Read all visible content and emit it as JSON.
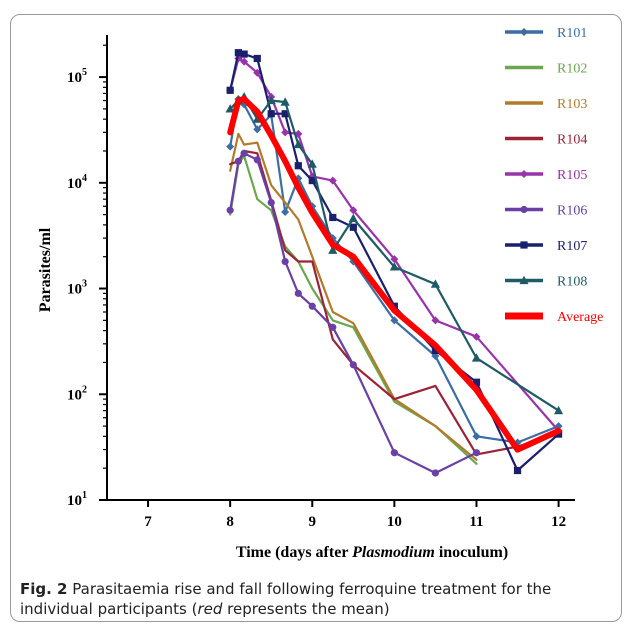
{
  "chart_data": {
    "type": "line",
    "xlabel_parts": [
      "Time (days after ",
      "Plasmodium",
      " inoculum)"
    ],
    "ylabel": "Parasites/ml",
    "x_ticks": [
      7,
      8,
      9,
      10,
      11,
      12
    ],
    "y_ticks": [
      {
        "value": 10,
        "base": "10",
        "exp": "1"
      },
      {
        "value": 100,
        "base": "10",
        "exp": "2"
      },
      {
        "value": 1000,
        "base": "10",
        "exp": "3"
      },
      {
        "value": 10000,
        "base": "10",
        "exp": "4"
      },
      {
        "value": 100000,
        "base": "10",
        "exp": "5"
      }
    ],
    "xlim": [
      6.5,
      12.2
    ],
    "ylim": [
      10,
      250000
    ],
    "yscale": "log",
    "series": [
      {
        "name": "R101",
        "color": "#3a6ea5",
        "marker": "diamond",
        "points": [
          [
            8,
            22000
          ],
          [
            8.1,
            62000
          ],
          [
            8.17,
            55000
          ],
          [
            8.33,
            32000
          ],
          [
            8.5,
            44000
          ],
          [
            8.67,
            5300
          ],
          [
            8.83,
            11000
          ],
          [
            9,
            6000
          ],
          [
            9.25,
            3000
          ],
          [
            9.5,
            1800
          ],
          [
            10,
            500
          ],
          [
            10.5,
            230
          ],
          [
            11,
            40
          ],
          [
            11.5,
            35
          ],
          [
            12,
            50
          ]
        ]
      },
      {
        "name": "R102",
        "color": "#6aa84f",
        "marker": "none",
        "points": [
          [
            8,
            5000
          ],
          [
            8.1,
            15000
          ],
          [
            8.17,
            18000
          ],
          [
            8.33,
            7000
          ],
          [
            8.5,
            5500
          ],
          [
            8.67,
            2500
          ],
          [
            8.83,
            1800
          ],
          [
            9,
            1000
          ],
          [
            9.25,
            500
          ],
          [
            9.5,
            430
          ],
          [
            10,
            85
          ],
          [
            10.5,
            50
          ],
          [
            11,
            22
          ]
        ]
      },
      {
        "name": "R103",
        "color": "#b47a2b",
        "marker": "none",
        "points": [
          [
            8,
            13000
          ],
          [
            8.1,
            29000
          ],
          [
            8.17,
            23000
          ],
          [
            8.33,
            24000
          ],
          [
            8.5,
            9500
          ],
          [
            8.67,
            6500
          ],
          [
            8.83,
            4500
          ],
          [
            9,
            2000
          ],
          [
            9.25,
            600
          ],
          [
            9.5,
            470
          ],
          [
            10,
            90
          ],
          [
            10.5,
            50
          ],
          [
            11,
            24
          ]
        ]
      },
      {
        "name": "R104",
        "color": "#9b2335",
        "marker": "none",
        "points": [
          [
            8,
            15000
          ],
          [
            8.1,
            16000
          ],
          [
            8.17,
            20000
          ],
          [
            8.33,
            19000
          ],
          [
            8.5,
            6800
          ],
          [
            8.67,
            2300
          ],
          [
            8.83,
            1800
          ],
          [
            9,
            1800
          ],
          [
            9.25,
            330
          ],
          [
            9.5,
            190
          ],
          [
            10,
            90
          ],
          [
            10.5,
            120
          ],
          [
            11,
            27
          ],
          [
            11.5,
            32
          ],
          [
            12,
            42
          ]
        ]
      },
      {
        "name": "R105",
        "color": "#9933aa",
        "marker": "diamond",
        "points": [
          [
            8,
            75000
          ],
          [
            8.1,
            150000
          ],
          [
            8.17,
            140000
          ],
          [
            8.33,
            110000
          ],
          [
            8.5,
            65000
          ],
          [
            8.67,
            30000
          ],
          [
            8.83,
            29000
          ],
          [
            9,
            11500
          ],
          [
            9.25,
            10500
          ],
          [
            9.5,
            5500
          ],
          [
            10,
            1900
          ],
          [
            10.5,
            500
          ],
          [
            11,
            350
          ],
          [
            12,
            45
          ]
        ]
      },
      {
        "name": "R106",
        "color": "#6a3fa6",
        "marker": "circle",
        "points": [
          [
            8,
            5500
          ],
          [
            8.1,
            16000
          ],
          [
            8.17,
            19000
          ],
          [
            8.33,
            16500
          ],
          [
            8.5,
            6500
          ],
          [
            8.67,
            1800
          ],
          [
            8.83,
            900
          ],
          [
            9,
            680
          ],
          [
            9.25,
            430
          ],
          [
            9.5,
            190
          ],
          [
            10,
            28
          ],
          [
            10.5,
            18
          ],
          [
            11,
            28
          ]
        ]
      },
      {
        "name": "R107",
        "color": "#1a1f6e",
        "marker": "square",
        "points": [
          [
            8,
            75000
          ],
          [
            8.1,
            170000
          ],
          [
            8.17,
            165000
          ],
          [
            8.33,
            150000
          ],
          [
            8.5,
            45000
          ],
          [
            8.67,
            45000
          ],
          [
            8.83,
            14500
          ],
          [
            9,
            10500
          ],
          [
            9.25,
            4700
          ],
          [
            9.5,
            3800
          ],
          [
            10,
            680
          ],
          [
            10.5,
            260
          ],
          [
            11,
            130
          ],
          [
            11.5,
            19
          ],
          [
            12,
            42
          ]
        ]
      },
      {
        "name": "R108",
        "color": "#1f5b66",
        "marker": "triangle",
        "points": [
          [
            8,
            50000
          ],
          [
            8.1,
            60000
          ],
          [
            8.17,
            65000
          ],
          [
            8.33,
            40000
          ],
          [
            8.5,
            60000
          ],
          [
            8.67,
            58000
          ],
          [
            8.83,
            23000
          ],
          [
            9,
            15000
          ],
          [
            9.25,
            2300
          ],
          [
            9.5,
            4600
          ],
          [
            10,
            1600
          ],
          [
            10.5,
            1100
          ],
          [
            11,
            220
          ],
          [
            12,
            70
          ]
        ]
      },
      {
        "name": "Average",
        "color": "#ff0000",
        "marker": "none",
        "thick": true,
        "points": [
          [
            8,
            30000
          ],
          [
            8.1,
            60000
          ],
          [
            8.17,
            62000
          ],
          [
            8.33,
            47000
          ],
          [
            8.5,
            28000
          ],
          [
            8.67,
            16000
          ],
          [
            8.83,
            9000
          ],
          [
            9,
            5200
          ],
          [
            9.25,
            2600
          ],
          [
            9.5,
            2000
          ],
          [
            10,
            620
          ],
          [
            10.5,
            290
          ],
          [
            11,
            110
          ],
          [
            11.5,
            30
          ],
          [
            12,
            45
          ]
        ]
      }
    ]
  },
  "caption": {
    "label": "Fig. 2",
    "text_1": "  Parasitaemia rise and fall following ferroquine treatment for the individual participants (",
    "emph": "red",
    "text_2": " represents the mean)"
  }
}
